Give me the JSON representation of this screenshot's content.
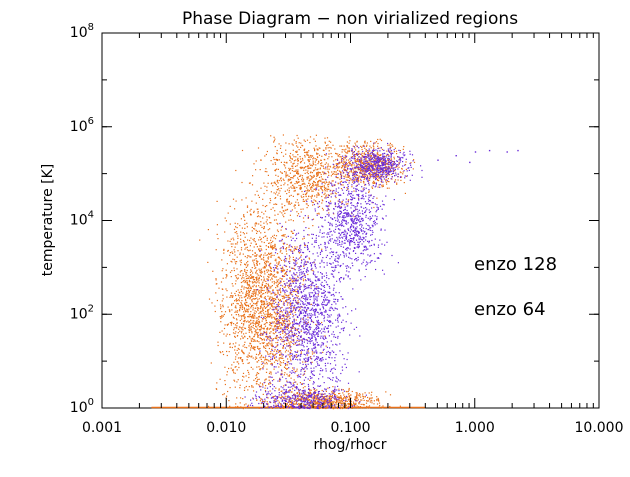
{
  "chart_data": {
    "type": "scatter",
    "title": "Phase Diagram − non virialized regions",
    "xlabel": "rhog/rhocr",
    "ylabel": "temperature [K]",
    "xscale": "log",
    "yscale": "log",
    "xlim": [
      0.001,
      10
    ],
    "ylim": [
      1,
      100000000
    ],
    "xticks": [
      {
        "value": 0.001,
        "label": "0.001"
      },
      {
        "value": 0.01,
        "label": "0.010"
      },
      {
        "value": 0.1,
        "label": "0.100"
      },
      {
        "value": 1,
        "label": "1.000"
      },
      {
        "value": 10,
        "label": "10.000"
      }
    ],
    "yticks": [
      {
        "value": 1,
        "mantissa": "10",
        "exp": "0"
      },
      {
        "value": 100,
        "mantissa": "10",
        "exp": "2"
      },
      {
        "value": 10000,
        "mantissa": "10",
        "exp": "4"
      },
      {
        "value": 1000000,
        "mantissa": "10",
        "exp": "6"
      },
      {
        "value": 100000000,
        "mantissa": "10",
        "exp": "8"
      }
    ],
    "grid": false,
    "legend_position": "right, inside plot",
    "series": [
      {
        "name": "enzo 128",
        "color": "#e8711a",
        "density_clusters": [
          {
            "log_x_center": -1.7,
            "log_x_spread": 0.33,
            "log_y_center": 2.2,
            "log_y_spread": 1.9,
            "weight": 0.5
          },
          {
            "log_x_center": -1.35,
            "log_x_spread": 0.35,
            "log_y_center": 5.0,
            "log_y_spread": 0.8,
            "weight": 0.18
          },
          {
            "log_x_center": -0.85,
            "log_x_spread": 0.25,
            "log_y_center": 5.2,
            "log_y_spread": 0.45,
            "weight": 0.16
          },
          {
            "log_x_center": -1.2,
            "log_x_spread": 0.4,
            "log_y_center": 0.15,
            "log_y_spread": 0.25,
            "weight": 0.16
          }
        ],
        "floor_segment": {
          "x_start": 0.0025,
          "x_end": 0.4,
          "y": 1
        }
      },
      {
        "name": "enzo 64",
        "color": "#6a2bd9",
        "density_clusters": [
          {
            "log_x_center": -1.35,
            "log_x_spread": 0.28,
            "log_y_center": 2.0,
            "log_y_spread": 1.6,
            "weight": 0.45
          },
          {
            "log_x_center": -1.0,
            "log_x_spread": 0.25,
            "log_y_center": 4.0,
            "log_y_spread": 1.0,
            "weight": 0.25
          },
          {
            "log_x_center": -0.8,
            "log_x_spread": 0.25,
            "log_y_center": 5.2,
            "log_y_spread": 0.35,
            "weight": 0.18
          },
          {
            "log_x_center": -1.4,
            "log_x_spread": 0.35,
            "log_y_center": 0.2,
            "log_y_spread": 0.3,
            "weight": 0.12
          }
        ],
        "tail_points": [
          [
            0.5,
            200000
          ],
          [
            0.7,
            250000
          ],
          [
            1.0,
            300000
          ],
          [
            1.3,
            320000
          ],
          [
            1.8,
            300000
          ],
          [
            2.2,
            320000
          ],
          [
            0.9,
            180000
          ]
        ]
      }
    ]
  }
}
